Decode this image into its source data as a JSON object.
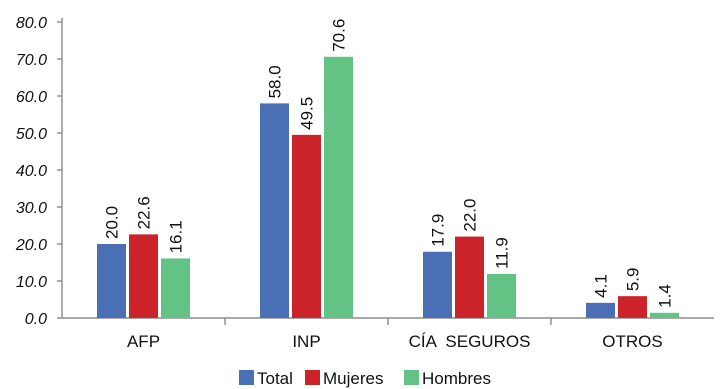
{
  "chart_data": {
    "type": "bar",
    "categories": [
      "AFP",
      "INP",
      "CÍA  SEGUROS",
      "OTROS"
    ],
    "series": [
      {
        "name": "Total",
        "color": "#4a6fb5",
        "values": [
          20.0,
          58.0,
          17.9,
          4.1
        ],
        "labels": [
          "20.0",
          "58.0",
          "17.9",
          "4.1"
        ]
      },
      {
        "name": "Mujeres",
        "color": "#cc2229",
        "values": [
          22.6,
          49.5,
          22.0,
          5.9
        ],
        "labels": [
          "22.6",
          "49.5",
          "22.0",
          "5.9"
        ]
      },
      {
        "name": "Hombres",
        "color": "#62c385",
        "values": [
          16.1,
          70.6,
          11.9,
          1.4
        ],
        "labels": [
          "16.1",
          "70.6",
          "11.9",
          "1.4"
        ]
      }
    ],
    "yticks": [
      "0.0",
      "10.0",
      "20.0",
      "30.0",
      "40.0",
      "50.0",
      "60.0",
      "70.0",
      "80.0"
    ],
    "ylim": [
      0,
      80
    ],
    "title": "",
    "xlabel": "",
    "ylabel": "",
    "grid": false,
    "legend": "bottom"
  }
}
